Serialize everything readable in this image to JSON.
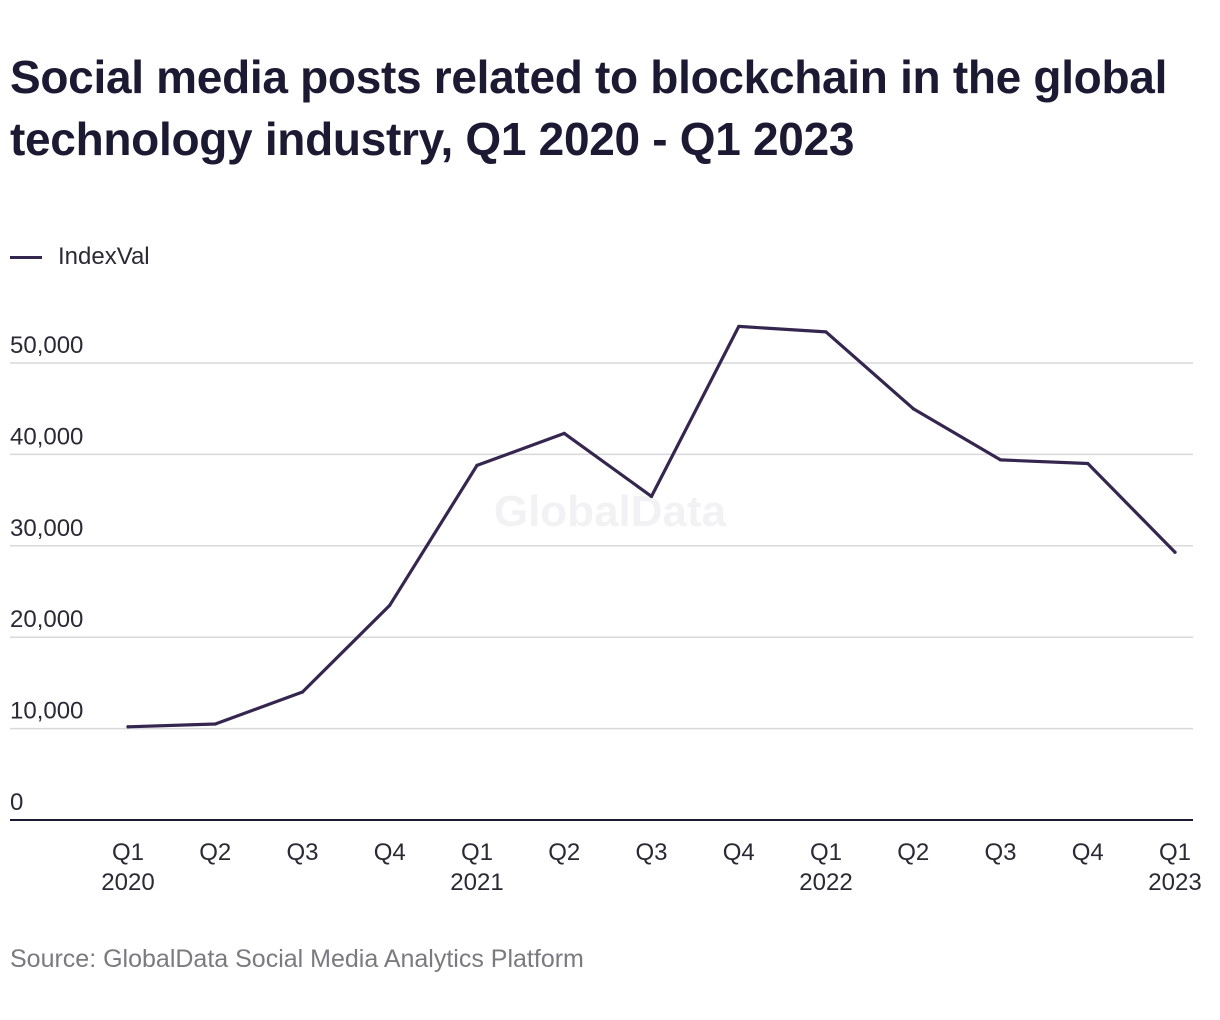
{
  "chart_data": {
    "type": "line",
    "title": "Social media posts related to blockchain in the global technology industry, Q1 2020 - Q1 2023",
    "categories": [
      [
        "Q1",
        "2020"
      ],
      [
        "Q2",
        ""
      ],
      [
        "Q3",
        ""
      ],
      [
        "Q4",
        ""
      ],
      [
        "Q1",
        "2021"
      ],
      [
        "Q2",
        ""
      ],
      [
        "Q3",
        ""
      ],
      [
        "Q4",
        ""
      ],
      [
        "Q1",
        "2022"
      ],
      [
        "Q2",
        ""
      ],
      [
        "Q3",
        ""
      ],
      [
        "Q4",
        ""
      ],
      [
        "Q1",
        "2023"
      ]
    ],
    "series": [
      {
        "name": "IndexVal",
        "color": "#35264f",
        "values": [
          10200,
          10500,
          14000,
          23500,
          38800,
          42300,
          35400,
          54000,
          53400,
          45000,
          39400,
          39000,
          29300
        ]
      }
    ],
    "ylim": [
      0,
      50000
    ],
    "yticks": [
      0,
      10000,
      20000,
      30000,
      40000,
      50000
    ],
    "ytick_labels": [
      "0",
      "10,000",
      "20,000",
      "30,000",
      "40,000",
      "50,000"
    ],
    "grid": true,
    "legend_position": "top-left",
    "xlabel": "",
    "ylabel": ""
  },
  "watermark": "GlobalData",
  "source": "Source: GlobalData Social Media Analytics Platform"
}
